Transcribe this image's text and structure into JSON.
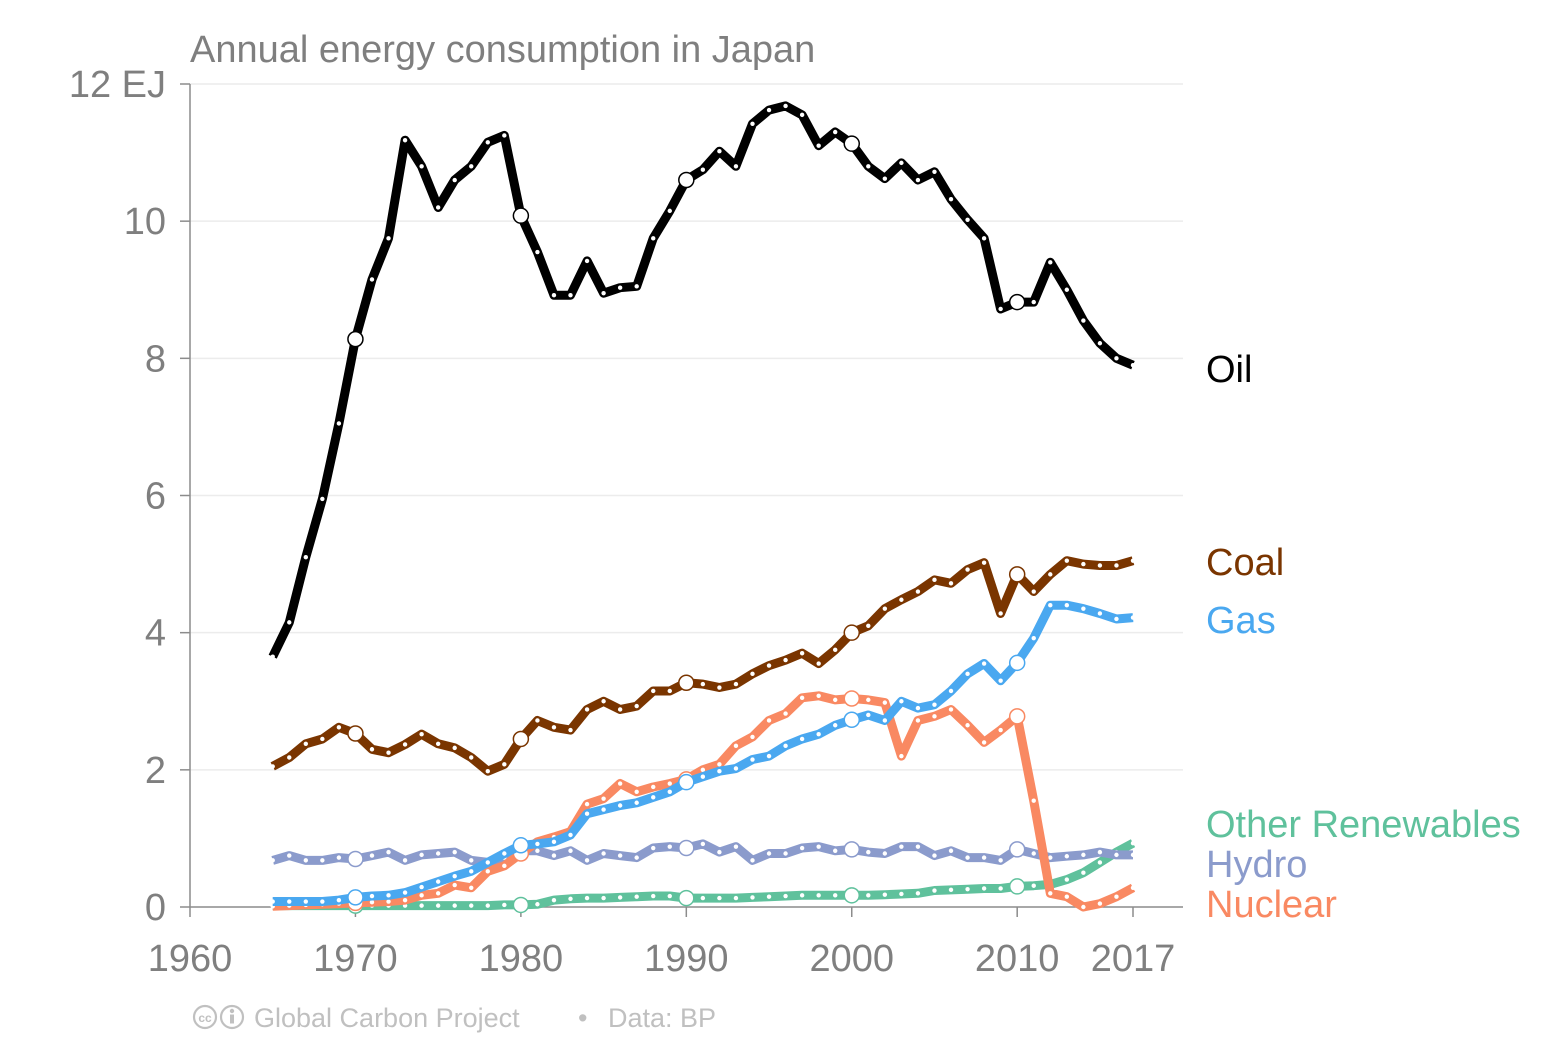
{
  "chart_data": {
    "type": "line",
    "title": "Annual energy consumption in Japan",
    "unit": "EJ",
    "xlim": [
      1960,
      2017
    ],
    "ylim": [
      0,
      12
    ],
    "x_ticks": [
      {
        "value": 1960,
        "label": "1960"
      },
      {
        "value": 1970,
        "label": "1970"
      },
      {
        "value": 1980,
        "label": "1980"
      },
      {
        "value": 1990,
        "label": "1990"
      },
      {
        "value": 2000,
        "label": "2000"
      },
      {
        "value": 2010,
        "label": "2010"
      },
      {
        "value": 2017,
        "label": "2017"
      }
    ],
    "y_ticks": [
      {
        "value": 0,
        "label": "0"
      },
      {
        "value": 2,
        "label": "2"
      },
      {
        "value": 4,
        "label": "4"
      },
      {
        "value": 6,
        "label": "6"
      },
      {
        "value": 8,
        "label": "8"
      },
      {
        "value": 10,
        "label": "10"
      },
      {
        "value": 12,
        "label": "12 EJ"
      }
    ],
    "grid": true,
    "legend": "direct-labels-right",
    "x": [
      1965,
      1966,
      1967,
      1968,
      1969,
      1970,
      1971,
      1972,
      1973,
      1974,
      1975,
      1976,
      1977,
      1978,
      1979,
      1980,
      1981,
      1982,
      1983,
      1984,
      1985,
      1986,
      1987,
      1988,
      1989,
      1990,
      1991,
      1992,
      1993,
      1994,
      1995,
      1996,
      1997,
      1998,
      1999,
      2000,
      2001,
      2002,
      2003,
      2004,
      2005,
      2006,
      2007,
      2008,
      2009,
      2010,
      2011,
      2012,
      2013,
      2014,
      2015,
      2016,
      2017
    ],
    "series": [
      {
        "name": "Oil",
        "color": "#000000",
        "values": [
          3.65,
          4.15,
          5.1,
          5.95,
          7.05,
          8.28,
          9.15,
          9.75,
          11.18,
          10.8,
          10.2,
          10.6,
          10.8,
          11.15,
          11.25,
          10.08,
          9.55,
          8.92,
          8.92,
          9.42,
          8.95,
          9.03,
          9.05,
          9.75,
          10.15,
          10.6,
          10.75,
          11.02,
          10.8,
          11.42,
          11.62,
          11.68,
          11.55,
          11.1,
          11.3,
          11.13,
          10.8,
          10.62,
          10.85,
          10.6,
          10.72,
          10.32,
          10.02,
          9.75,
          8.72,
          8.82,
          8.82,
          9.4,
          9.0,
          8.55,
          8.22,
          8.0,
          7.9
        ]
      },
      {
        "name": "Coal",
        "color": "#7a3500",
        "values": [
          2.05,
          2.18,
          2.38,
          2.45,
          2.62,
          2.53,
          2.3,
          2.25,
          2.37,
          2.52,
          2.38,
          2.32,
          2.18,
          1.98,
          2.08,
          2.45,
          2.72,
          2.62,
          2.58,
          2.88,
          3.0,
          2.88,
          2.93,
          3.15,
          3.15,
          3.27,
          3.25,
          3.2,
          3.25,
          3.4,
          3.52,
          3.6,
          3.7,
          3.55,
          3.75,
          4.0,
          4.1,
          4.35,
          4.48,
          4.6,
          4.77,
          4.72,
          4.92,
          5.02,
          4.28,
          4.85,
          4.6,
          4.85,
          5.05,
          5.0,
          4.98,
          4.98,
          5.05
        ]
      },
      {
        "name": "Gas",
        "color": "#4aa8f0",
        "values": [
          0.08,
          0.08,
          0.08,
          0.08,
          0.1,
          0.14,
          0.16,
          0.17,
          0.21,
          0.29,
          0.37,
          0.45,
          0.52,
          0.65,
          0.78,
          0.9,
          0.92,
          0.95,
          1.05,
          1.36,
          1.42,
          1.48,
          1.52,
          1.6,
          1.68,
          1.82,
          1.9,
          1.98,
          2.02,
          2.15,
          2.2,
          2.35,
          2.45,
          2.52,
          2.65,
          2.73,
          2.8,
          2.72,
          3.0,
          2.9,
          2.95,
          3.15,
          3.4,
          3.55,
          3.3,
          3.56,
          3.92,
          4.4,
          4.4,
          4.35,
          4.28,
          4.2,
          4.22
        ]
      },
      {
        "name": "Nuclear",
        "color": "#f98962",
        "values": [
          0.01,
          0.02,
          0.03,
          0.04,
          0.05,
          0.06,
          0.07,
          0.08,
          0.1,
          0.17,
          0.2,
          0.32,
          0.28,
          0.52,
          0.6,
          0.78,
          0.95,
          1.02,
          1.1,
          1.5,
          1.58,
          1.8,
          1.68,
          1.75,
          1.8,
          1.86,
          2.0,
          2.08,
          2.35,
          2.48,
          2.72,
          2.82,
          3.05,
          3.08,
          3.02,
          3.04,
          3.02,
          2.98,
          2.2,
          2.72,
          2.78,
          2.88,
          2.65,
          2.4,
          2.58,
          2.78,
          1.55,
          0.2,
          0.15,
          0.0,
          0.05,
          0.15,
          0.28
        ]
      },
      {
        "name": "Hydro",
        "color": "#8b9bcc",
        "values": [
          0.68,
          0.75,
          0.68,
          0.68,
          0.72,
          0.7,
          0.75,
          0.8,
          0.68,
          0.76,
          0.78,
          0.8,
          0.68,
          0.65,
          0.72,
          0.82,
          0.82,
          0.75,
          0.82,
          0.68,
          0.78,
          0.75,
          0.72,
          0.86,
          0.88,
          0.86,
          0.92,
          0.8,
          0.88,
          0.68,
          0.78,
          0.78,
          0.86,
          0.88,
          0.82,
          0.84,
          0.8,
          0.78,
          0.88,
          0.88,
          0.75,
          0.82,
          0.72,
          0.72,
          0.68,
          0.84,
          0.78,
          0.72,
          0.74,
          0.76,
          0.8,
          0.76,
          0.76
        ]
      },
      {
        "name": "Other Renewables",
        "color": "#5fc19c",
        "values": [
          0.02,
          0.02,
          0.02,
          0.02,
          0.02,
          0.02,
          0.02,
          0.02,
          0.02,
          0.02,
          0.02,
          0.02,
          0.02,
          0.02,
          0.03,
          0.03,
          0.04,
          0.1,
          0.12,
          0.13,
          0.13,
          0.14,
          0.15,
          0.16,
          0.16,
          0.13,
          0.13,
          0.13,
          0.13,
          0.14,
          0.15,
          0.16,
          0.17,
          0.17,
          0.17,
          0.17,
          0.17,
          0.18,
          0.19,
          0.2,
          0.24,
          0.25,
          0.26,
          0.27,
          0.27,
          0.3,
          0.31,
          0.33,
          0.4,
          0.5,
          0.65,
          0.8,
          0.93
        ]
      }
    ],
    "highlight_years": [
      1970,
      1980,
      1990,
      2000,
      2010
    ]
  },
  "footer": {
    "credit": "Global Carbon Project",
    "separator": "•",
    "source": "Data: BP"
  }
}
